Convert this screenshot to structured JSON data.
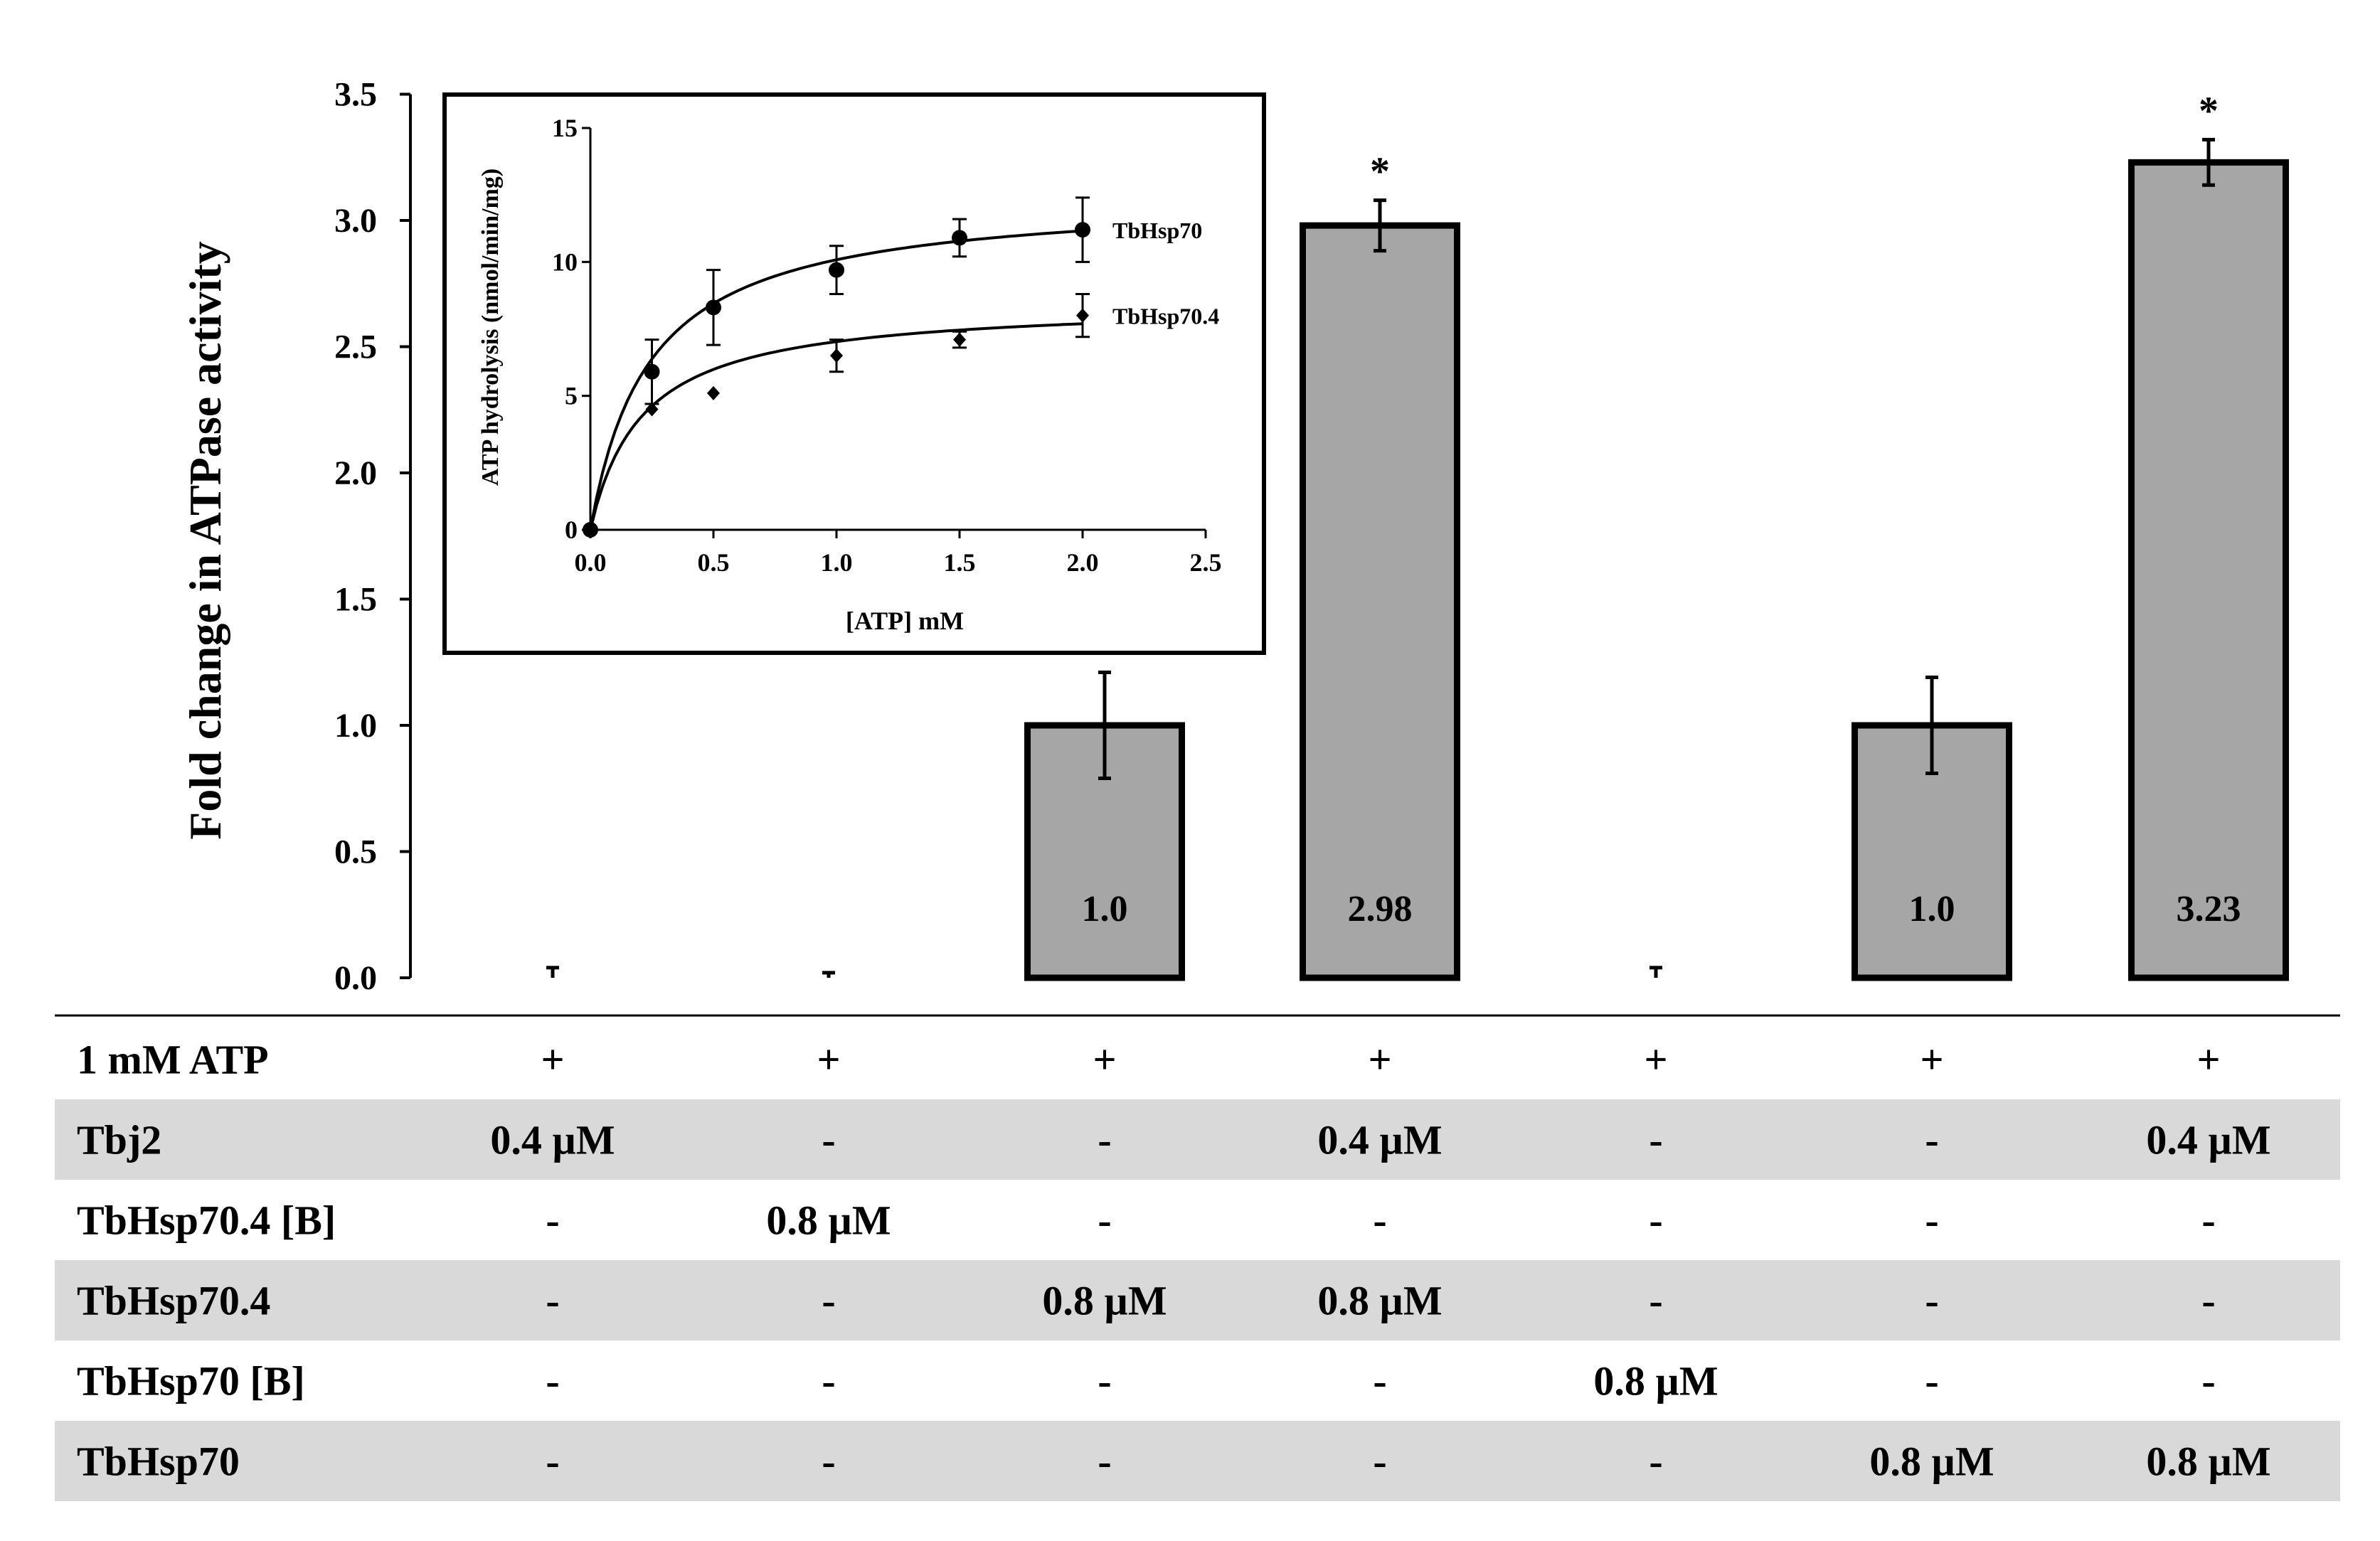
{
  "chart_data": [
    {
      "type": "bar",
      "ylabel": "Fold change in ATPase activity",
      "ylim": [
        0,
        3.5
      ],
      "yticks": [
        "0.0",
        "0.5",
        "1.0",
        "1.5",
        "2.0",
        "2.5",
        "3.0",
        "3.5"
      ],
      "ytick_values": [
        0,
        0.5,
        1.0,
        1.5,
        2.0,
        2.5,
        3.0,
        3.5
      ],
      "bars": [
        {
          "value": 0.0,
          "err": 0.04,
          "label": "",
          "star": ""
        },
        {
          "value": 0.0,
          "err": 0.02,
          "label": "",
          "star": ""
        },
        {
          "value": 1.0,
          "err": 0.21,
          "label": "1.0",
          "star": ""
        },
        {
          "value": 2.98,
          "err": 0.1,
          "label": "2.98",
          "star": "*"
        },
        {
          "value": 0.0,
          "err": 0.04,
          "label": "",
          "star": ""
        },
        {
          "value": 1.0,
          "err": 0.19,
          "label": "1.0",
          "star": ""
        },
        {
          "value": 3.23,
          "err": 0.09,
          "label": "3.23",
          "star": "*"
        }
      ],
      "colors": {
        "bar_fill": "#a6a6a6",
        "bar_edge": "#000000"
      }
    },
    {
      "type": "scatter",
      "inset": true,
      "xlabel": "[ATP] mM",
      "ylabel": "ATP hydrolysis (nmol/min/mg)",
      "xlim": [
        0,
        2.5
      ],
      "ylim": [
        0,
        15
      ],
      "xticks": [
        "0.0",
        "0.5",
        "1.0",
        "1.5",
        "2.0",
        "2.5"
      ],
      "xtick_values": [
        0,
        0.5,
        1.0,
        1.5,
        2.0,
        2.5
      ],
      "yticks": [
        "0",
        "5",
        "10",
        "15"
      ],
      "ytick_values": [
        0,
        5,
        10,
        15
      ],
      "series": [
        {
          "name": "TbHsp70",
          "marker": "circle",
          "x": [
            0,
            0.25,
            0.5,
            1.0,
            1.5,
            2.0
          ],
          "y": [
            0,
            5.9,
            8.3,
            9.7,
            10.9,
            11.2
          ],
          "err": [
            0,
            1.2,
            1.4,
            0.9,
            0.7,
            1.2
          ],
          "fit": {
            "vmax": 12.5,
            "km": 0.24
          }
        },
        {
          "name": "TbHsp70.4",
          "marker": "diamond",
          "x": [
            0,
            0.25,
            0.5,
            1.0,
            1.5,
            2.0
          ],
          "y": [
            0,
            4.5,
            5.1,
            6.5,
            7.1,
            8.0
          ],
          "err": [
            0,
            0,
            0,
            0.6,
            0.3,
            0.8
          ],
          "fit": {
            "vmax": 8.5,
            "km": 0.21
          }
        }
      ]
    }
  ],
  "table": {
    "rows": [
      {
        "label": "1 mM ATP",
        "cells": [
          "+",
          "+",
          "+",
          "+",
          "+",
          "+",
          "+"
        ],
        "shaded": false
      },
      {
        "label": "Tbj2",
        "cells": [
          "0.4 µM",
          "-",
          "-",
          "0.4 µM",
          "-",
          "-",
          "0.4 µM"
        ],
        "shaded": true
      },
      {
        "label": "TbHsp70.4 [B]",
        "cells": [
          "-",
          "0.8 µM",
          "-",
          "-",
          "-",
          "-",
          "-"
        ],
        "shaded": false
      },
      {
        "label": "TbHsp70.4",
        "cells": [
          "-",
          "-",
          "0.8 µM",
          "0.8 µM",
          "-",
          "-",
          "-"
        ],
        "shaded": true
      },
      {
        "label": "TbHsp70 [B]",
        "cells": [
          "-",
          "-",
          "-",
          "-",
          "0.8 µM",
          "-",
          "-"
        ],
        "shaded": false
      },
      {
        "label": "TbHsp70",
        "cells": [
          "-",
          "-",
          "-",
          "-",
          "-",
          "0.8 µM",
          "0.8 µM"
        ],
        "shaded": true
      }
    ],
    "shade_color": "#d9d9d9"
  }
}
